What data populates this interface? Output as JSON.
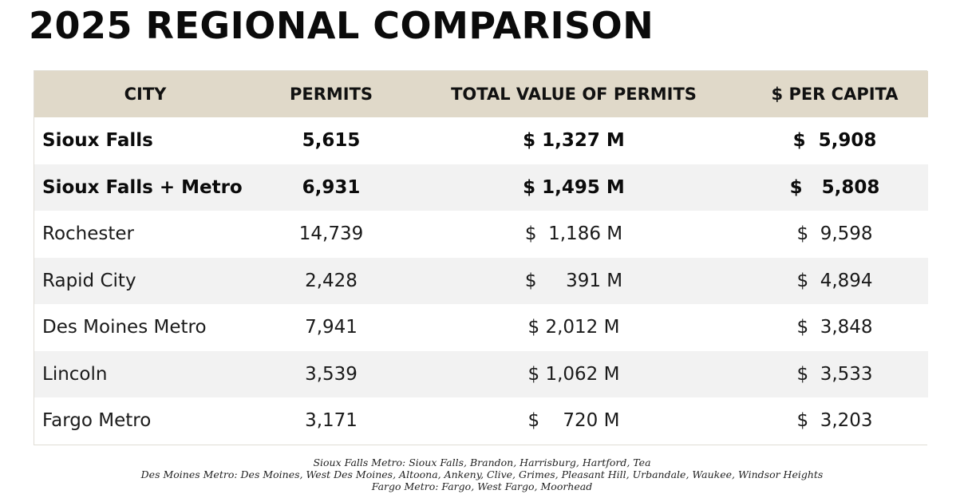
{
  "title": "2025 REGIONAL COMPARISON",
  "table": {
    "headers": [
      "CITY",
      "PERMITS",
      "TOTAL VALUE OF PERMITS",
      "$ PER CAPITA"
    ],
    "rows": [
      {
        "city": "Sioux Falls",
        "permits": "5,615",
        "value": "$ 1,327 M",
        "per_capita": "$  5,908",
        "bold": true
      },
      {
        "city": "Sioux Falls + Metro",
        "permits": "6,931",
        "value": "$ 1,495 M",
        "per_capita": "$   5,808",
        "bold": true
      },
      {
        "city": "Rochester",
        "permits": "14,739",
        "value": "$  1,186 M",
        "per_capita": "$  9,598",
        "bold": false
      },
      {
        "city": "Rapid City",
        "permits": "2,428",
        "value": "$     391 M",
        "per_capita": "$  4,894",
        "bold": false
      },
      {
        "city": "Des Moines Metro",
        "permits": "7,941",
        "value": "$ 2,012 M",
        "per_capita": "$  3,848",
        "bold": false
      },
      {
        "city": "Lincoln",
        "permits": "3,539",
        "value": "$ 1,062 M",
        "per_capita": "$  3,533",
        "bold": false
      },
      {
        "city": "Fargo Metro",
        "permits": "3,171",
        "value": "$    720 M",
        "per_capita": "$  3,203",
        "bold": false
      }
    ]
  },
  "footnotes": [
    "Sioux Falls Metro: Sioux Falls, Brandon, Harrisburg, Hartford, Tea",
    "Des Moines Metro: Des Moines, West Des Moines, Altoona, Ankeny, Clive, Grimes, Pleasant Hill, Urbandale, Waukee, Windsor Heights",
    "Fargo Metro: Fargo, West Fargo, Moorhead"
  ]
}
